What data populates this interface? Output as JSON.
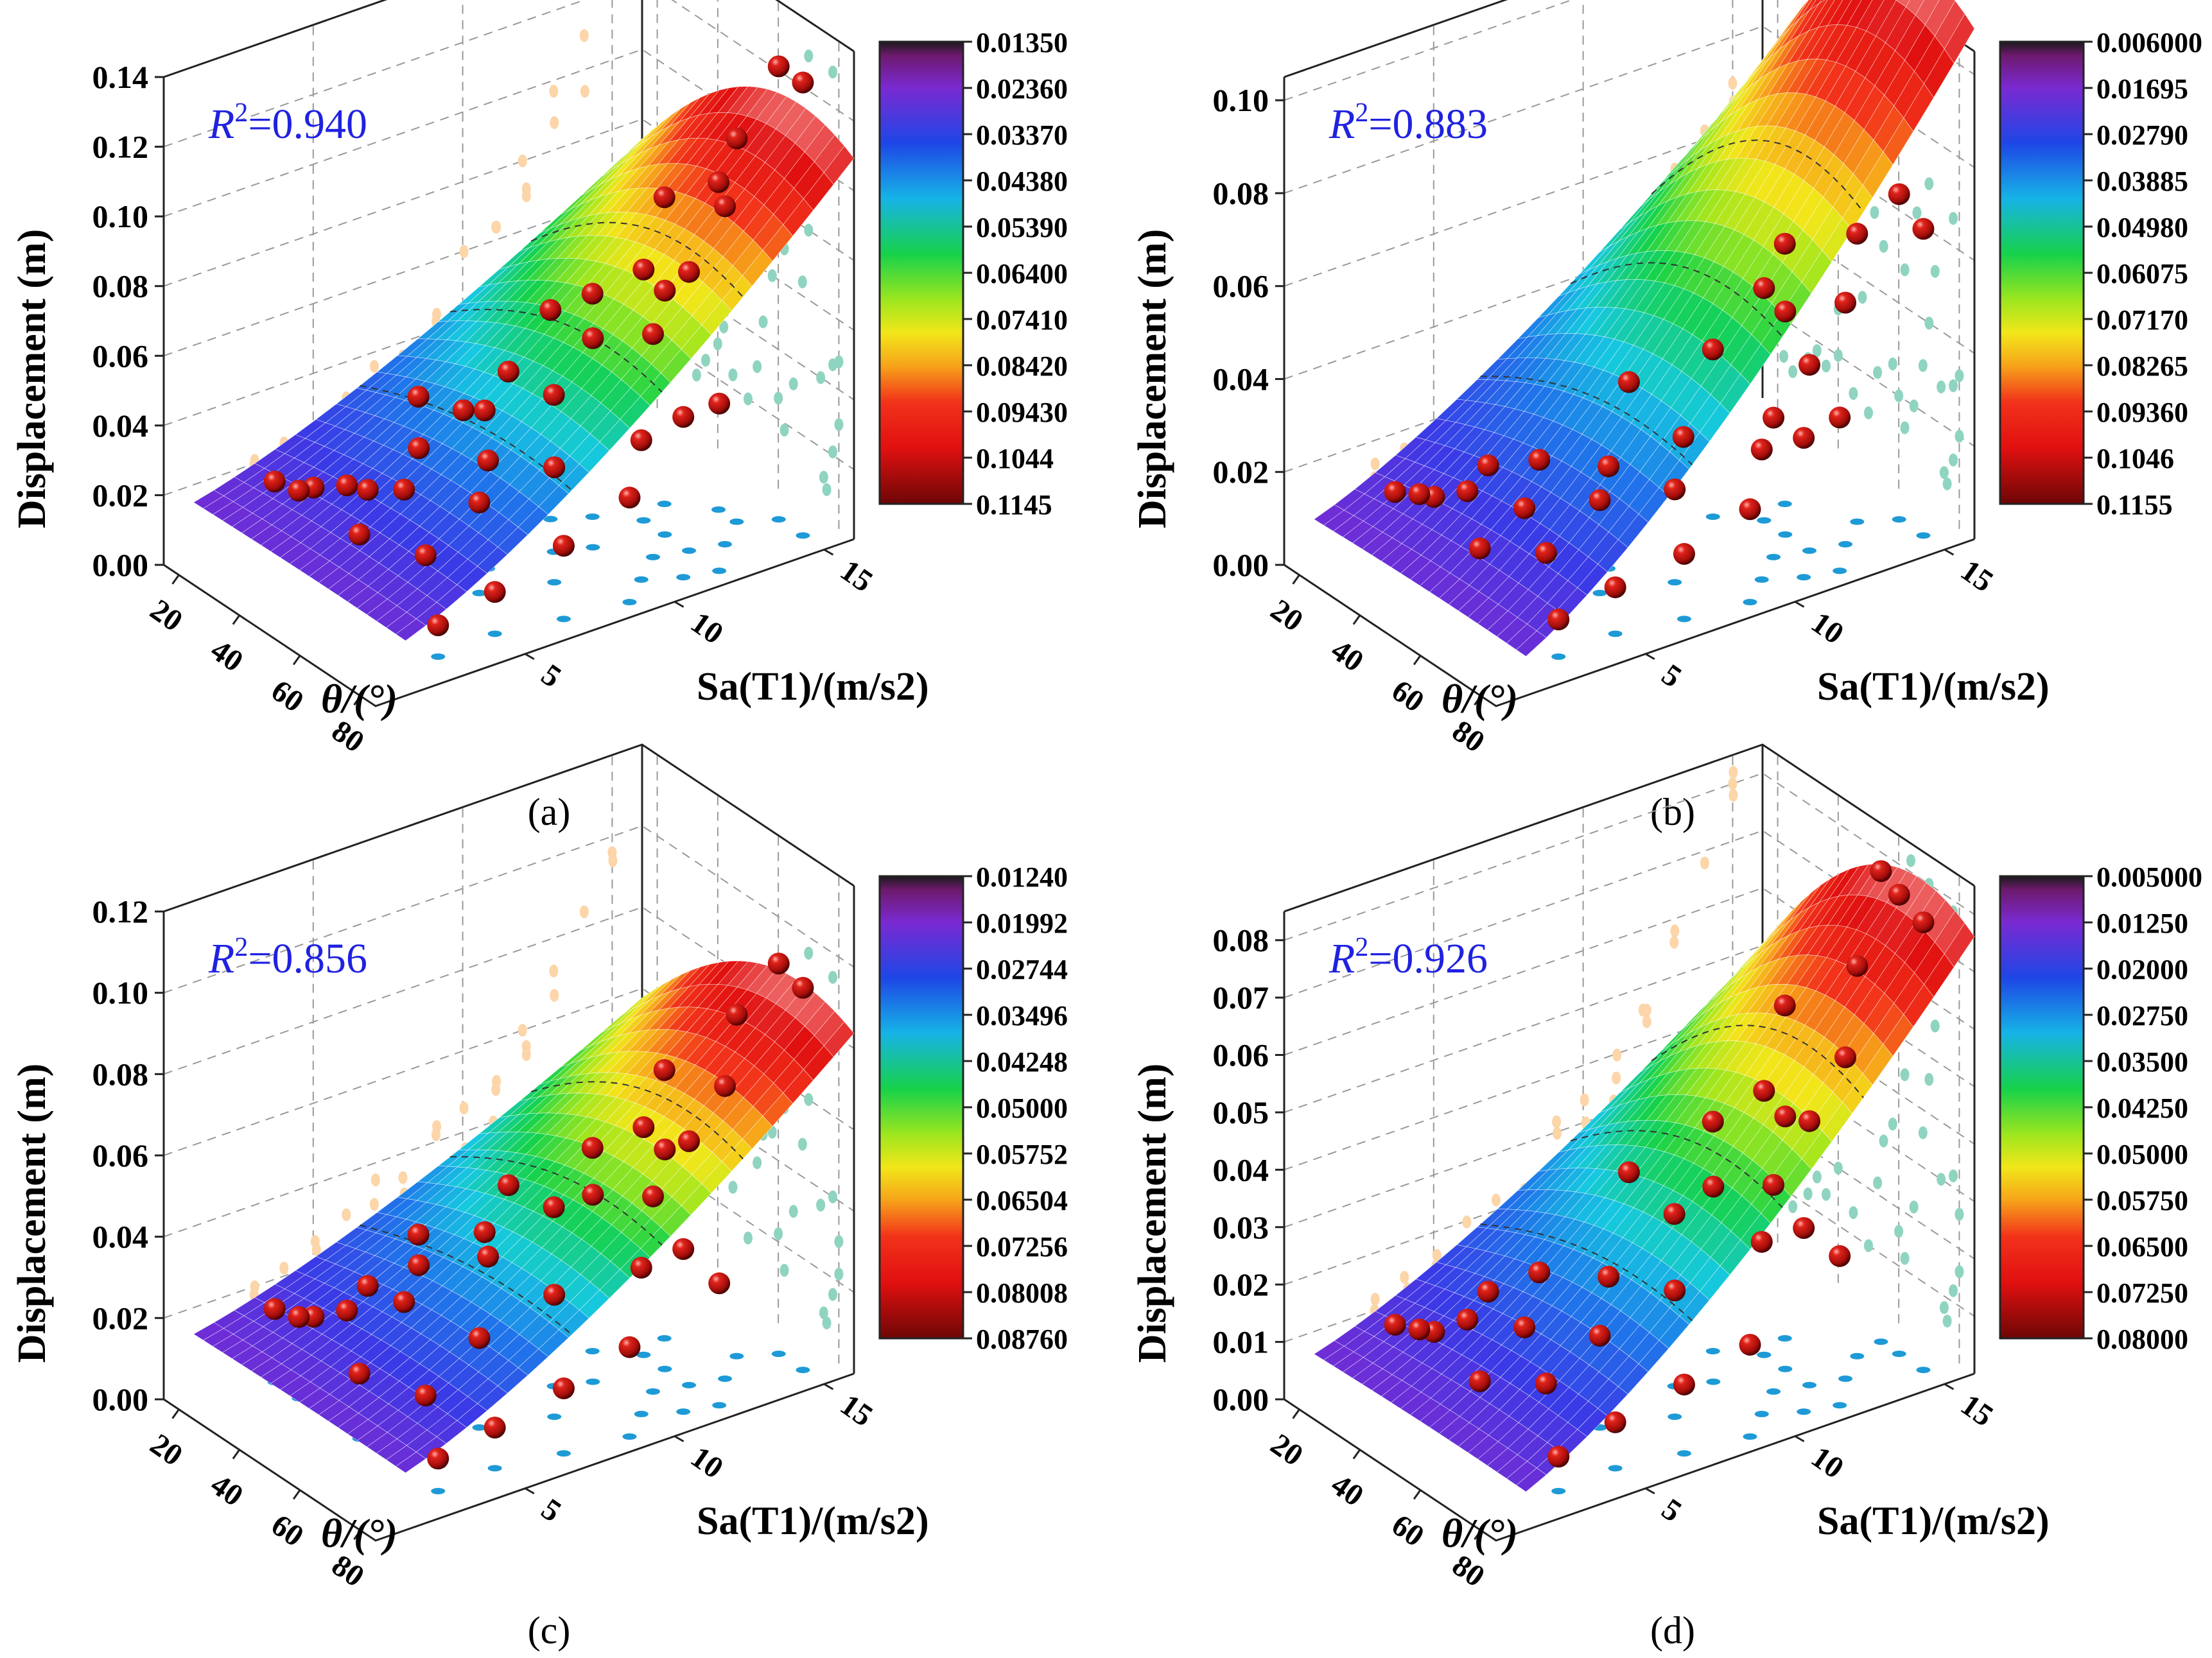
{
  "figure": {
    "panel_labels": [
      "(a)",
      "(b)",
      "(c)",
      "(d)"
    ]
  },
  "chart_data": [
    {
      "panel": "(a)",
      "type": "surface3d",
      "zlabel": "Displacement (m)",
      "xlabel": "θ/(°)",
      "ylabel": "Sa(T1)/(m/s2)",
      "x_ticks": [
        "20",
        "40",
        "60",
        "80"
      ],
      "y_ticks": [
        "5",
        "10",
        "15"
      ],
      "z_ticks": [
        "0.00",
        "0.02",
        "0.04",
        "0.06",
        "0.08",
        "0.10",
        "0.12",
        "0.14"
      ],
      "zlim": [
        0,
        0.14
      ],
      "r2_label": "R",
      "r2_sup": "2",
      "r2_value": "=0.940",
      "colorbar": [
        "0.01350",
        "0.02360",
        "0.03370",
        "0.04380",
        "0.05390",
        "0.06400",
        "0.07410",
        "0.08420",
        "0.09430",
        "0.1044",
        "0.1145"
      ],
      "surface_peak": 0.1145,
      "surface_min": 0.0135,
      "points": [
        [
          22,
          3,
          0.019
        ],
        [
          25,
          4,
          0.016
        ],
        [
          30,
          3,
          0.021
        ],
        [
          33,
          5,
          0.017
        ],
        [
          36,
          4,
          0.023
        ],
        [
          40,
          6,
          0.03
        ],
        [
          42,
          8,
          0.036
        ],
        [
          45,
          5,
          0.024
        ],
        [
          50,
          3,
          0.02
        ],
        [
          53,
          7,
          0.031
        ],
        [
          55,
          9,
          0.045
        ],
        [
          58,
          10,
          0.06
        ],
        [
          60,
          6,
          0.026
        ],
        [
          62,
          4,
          0.018
        ],
        [
          65,
          8,
          0.033
        ],
        [
          68,
          11,
          0.064
        ],
        [
          70,
          12,
          0.08
        ],
        [
          72,
          13,
          0.097
        ],
        [
          75,
          5,
          0.012
        ],
        [
          76,
          3,
          0.009
        ],
        [
          78,
          7,
          0.021
        ],
        [
          80,
          9,
          0.03
        ],
        [
          62,
          12,
          0.07
        ],
        [
          55,
          12,
          0.072
        ],
        [
          48,
          11,
          0.064
        ],
        [
          40,
          9,
          0.043
        ],
        [
          70,
          15,
          0.13
        ],
        [
          78,
          15,
          0.13
        ],
        [
          66,
          14,
          0.11
        ],
        [
          74,
          10,
          0.04
        ],
        [
          78,
          11,
          0.046
        ],
        [
          80,
          12,
          0.048
        ],
        [
          52,
          13,
          0.088
        ],
        [
          44,
          10,
          0.06
        ],
        [
          30,
          7,
          0.036
        ],
        [
          35,
          8,
          0.032
        ],
        [
          60,
          14,
          0.094
        ]
      ]
    },
    {
      "panel": "(b)",
      "type": "surface3d",
      "zlabel": "Displacement (m)",
      "xlabel": "θ/(°)",
      "ylabel": "Sa(T1)/(m/s2)",
      "x_ticks": [
        "20",
        "40",
        "60",
        "80"
      ],
      "y_ticks": [
        "5",
        "10",
        "15"
      ],
      "z_ticks": [
        "0.00",
        "0.02",
        "0.04",
        "0.06",
        "0.08",
        "0.10"
      ],
      "zlim": [
        0,
        0.105
      ],
      "r2_label": "R",
      "r2_sup": "2",
      "r2_value": "=0.883",
      "colorbar": [
        "0.006000",
        "0.01695",
        "0.02790",
        "0.03885",
        "0.04980",
        "0.06075",
        "0.07170",
        "0.08265",
        "0.09360",
        "0.1046",
        "0.1155"
      ],
      "surface_peak": 0.1155,
      "surface_min": 0.006,
      "points": [
        [
          22,
          3,
          0.012
        ],
        [
          25,
          4,
          0.01
        ],
        [
          30,
          3,
          0.015
        ],
        [
          33,
          5,
          0.018
        ],
        [
          36,
          4,
          0.016
        ],
        [
          40,
          6,
          0.02
        ],
        [
          45,
          5,
          0.014
        ],
        [
          50,
          3,
          0.012
        ],
        [
          53,
          7,
          0.022
        ],
        [
          58,
          9,
          0.026
        ],
        [
          60,
          6,
          0.02
        ],
        [
          62,
          4,
          0.014
        ],
        [
          65,
          8,
          0.02
        ],
        [
          68,
          11,
          0.03
        ],
        [
          70,
          12,
          0.04
        ],
        [
          72,
          13,
          0.052
        ],
        [
          75,
          5,
          0.01
        ],
        [
          76,
          3,
          0.008
        ],
        [
          78,
          7,
          0.014
        ],
        [
          80,
          9,
          0.02
        ],
        [
          62,
          12,
          0.048
        ],
        [
          55,
          12,
          0.05
        ],
        [
          48,
          11,
          0.036
        ],
        [
          70,
          15,
          0.07
        ],
        [
          78,
          15,
          0.066
        ],
        [
          66,
          14,
          0.062
        ],
        [
          74,
          10,
          0.028
        ],
        [
          78,
          11,
          0.03
        ],
        [
          80,
          12,
          0.033
        ],
        [
          52,
          13,
          0.056
        ],
        [
          40,
          9,
          0.03
        ]
      ]
    },
    {
      "panel": "(c)",
      "type": "surface3d",
      "zlabel": "Displacement (m)",
      "xlabel": "θ/(°)",
      "ylabel": "Sa(T1)/(m/s2)",
      "x_ticks": [
        "20",
        "40",
        "60",
        "80"
      ],
      "y_ticks": [
        "5",
        "10",
        "15"
      ],
      "z_ticks": [
        "0.00",
        "0.02",
        "0.04",
        "0.06",
        "0.08",
        "0.10",
        "0.12"
      ],
      "zlim": [
        0,
        0.12
      ],
      "r2_label": "R",
      "r2_sup": "2",
      "r2_value": "=0.856",
      "colorbar": [
        "0.01240",
        "0.01992",
        "0.02744",
        "0.03496",
        "0.04248",
        "0.05000",
        "0.05752",
        "0.06504",
        "0.07256",
        "0.08008",
        "0.08760"
      ],
      "surface_peak": 0.0876,
      "surface_min": 0.0124,
      "points": [
        [
          22,
          3,
          0.018
        ],
        [
          25,
          4,
          0.015
        ],
        [
          30,
          3,
          0.02
        ],
        [
          33,
          5,
          0.024
        ],
        [
          36,
          4,
          0.022
        ],
        [
          40,
          6,
          0.03
        ],
        [
          42,
          8,
          0.034
        ],
        [
          45,
          5,
          0.026
        ],
        [
          50,
          3,
          0.016
        ],
        [
          53,
          7,
          0.036
        ],
        [
          55,
          9,
          0.044
        ],
        [
          58,
          10,
          0.046
        ],
        [
          60,
          6,
          0.022
        ],
        [
          62,
          4,
          0.014
        ],
        [
          65,
          8,
          0.03
        ],
        [
          68,
          11,
          0.048
        ],
        [
          70,
          12,
          0.06
        ],
        [
          72,
          13,
          0.072
        ],
        [
          75,
          5,
          0.01
        ],
        [
          76,
          3,
          0.008
        ],
        [
          78,
          7,
          0.016
        ],
        [
          80,
          9,
          0.022
        ],
        [
          62,
          12,
          0.054
        ],
        [
          55,
          12,
          0.056
        ],
        [
          48,
          11,
          0.05
        ],
        [
          70,
          15,
          0.096
        ],
        [
          78,
          15,
          0.094
        ],
        [
          66,
          14,
          0.084
        ],
        [
          74,
          10,
          0.036
        ],
        [
          78,
          11,
          0.04
        ],
        [
          80,
          12,
          0.03
        ],
        [
          52,
          13,
          0.066
        ],
        [
          40,
          9,
          0.042
        ],
        [
          30,
          7,
          0.03
        ]
      ]
    },
    {
      "panel": "(d)",
      "type": "surface3d",
      "zlabel": "Displacement (m)",
      "xlabel": "θ/(°)",
      "ylabel": "Sa(T1)/(m/s2)",
      "x_ticks": [
        "20",
        "40",
        "60",
        "80"
      ],
      "y_ticks": [
        "5",
        "10",
        "15"
      ],
      "z_ticks": [
        "0.00",
        "0.01",
        "0.02",
        "0.03",
        "0.04",
        "0.05",
        "0.06",
        "0.07",
        "0.08"
      ],
      "zlim": [
        0,
        0.085
      ],
      "r2_label": "R",
      "r2_sup": "2",
      "r2_value": "=0.926",
      "colorbar": [
        "0.005000",
        "0.01250",
        "0.02000",
        "0.02750",
        "0.03500",
        "0.04250",
        "0.05000",
        "0.05750",
        "0.06500",
        "0.07250",
        "0.08000"
      ],
      "surface_peak": 0.08,
      "surface_min": 0.005,
      "points": [
        [
          22,
          3,
          0.01
        ],
        [
          25,
          4,
          0.008
        ],
        [
          30,
          3,
          0.012
        ],
        [
          33,
          5,
          0.016
        ],
        [
          36,
          4,
          0.014
        ],
        [
          40,
          6,
          0.02
        ],
        [
          45,
          5,
          0.014
        ],
        [
          50,
          3,
          0.01
        ],
        [
          53,
          7,
          0.022
        ],
        [
          55,
          9,
          0.03
        ],
        [
          58,
          10,
          0.034
        ],
        [
          60,
          6,
          0.016
        ],
        [
          62,
          4,
          0.012
        ],
        [
          65,
          8,
          0.022
        ],
        [
          68,
          11,
          0.036
        ],
        [
          70,
          12,
          0.046
        ],
        [
          72,
          13,
          0.056
        ],
        [
          75,
          5,
          0.008
        ],
        [
          76,
          3,
          0.006
        ],
        [
          78,
          7,
          0.012
        ],
        [
          80,
          9,
          0.016
        ],
        [
          62,
          12,
          0.044
        ],
        [
          55,
          12,
          0.046
        ],
        [
          48,
          11,
          0.04
        ],
        [
          70,
          15,
          0.08
        ],
        [
          78,
          15,
          0.078
        ],
        [
          66,
          14,
          0.068
        ],
        [
          74,
          10,
          0.03
        ],
        [
          78,
          11,
          0.032
        ],
        [
          80,
          12,
          0.026
        ],
        [
          52,
          13,
          0.058
        ],
        [
          40,
          9,
          0.032
        ],
        [
          64,
          15,
          0.082
        ]
      ]
    }
  ]
}
